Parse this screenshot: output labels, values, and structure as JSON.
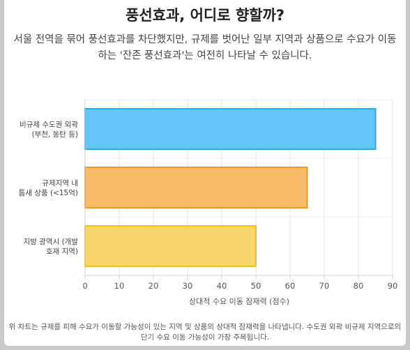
{
  "title": "풍선효과, 어디로 향할까?",
  "subtitle": "서울 전역을 묶어 풍선효과를 차단했지만, 규제를 벗어난 일부 지역과 상품으로 수요가 이동하는 '잔존 풍선효과'는 여전히 나타날 수 있습니다.",
  "footnote": "위 차트는 규제를 피해 수요가 이동할 가능성이 있는 지역 및 상품의 상대적 잠재력을 나타냅니다. 수도권 외곽 비규제 지역으로의 단기 수요 이동 가능성이 가장 주목됩니다.",
  "chart_data": {
    "type": "bar",
    "orientation": "horizontal",
    "categories": [
      [
        "비규제 수도권 외곽",
        "(부천, 동탄 등)"
      ],
      [
        "규제지역 내",
        "틈새 상품 (<15억)"
      ],
      [
        "지방 광역시 (개발",
        "호재 지역)"
      ]
    ],
    "values": [
      85,
      65,
      50
    ],
    "colors": [
      {
        "fill": "#66c6fb",
        "stroke": "#2aa8ef"
      },
      {
        "fill": "#f7bb6a",
        "stroke": "#f2961e"
      },
      {
        "fill": "#f8d66a",
        "stroke": "#f1bd1c"
      }
    ],
    "xlabel": "상대적 수요 이동 잠재력 (점수)",
    "ylabel": "",
    "xlim": [
      0,
      90
    ],
    "xticks": [
      0,
      10,
      20,
      30,
      40,
      50,
      60,
      70,
      80,
      90
    ],
    "grid": true,
    "legend": "none"
  }
}
